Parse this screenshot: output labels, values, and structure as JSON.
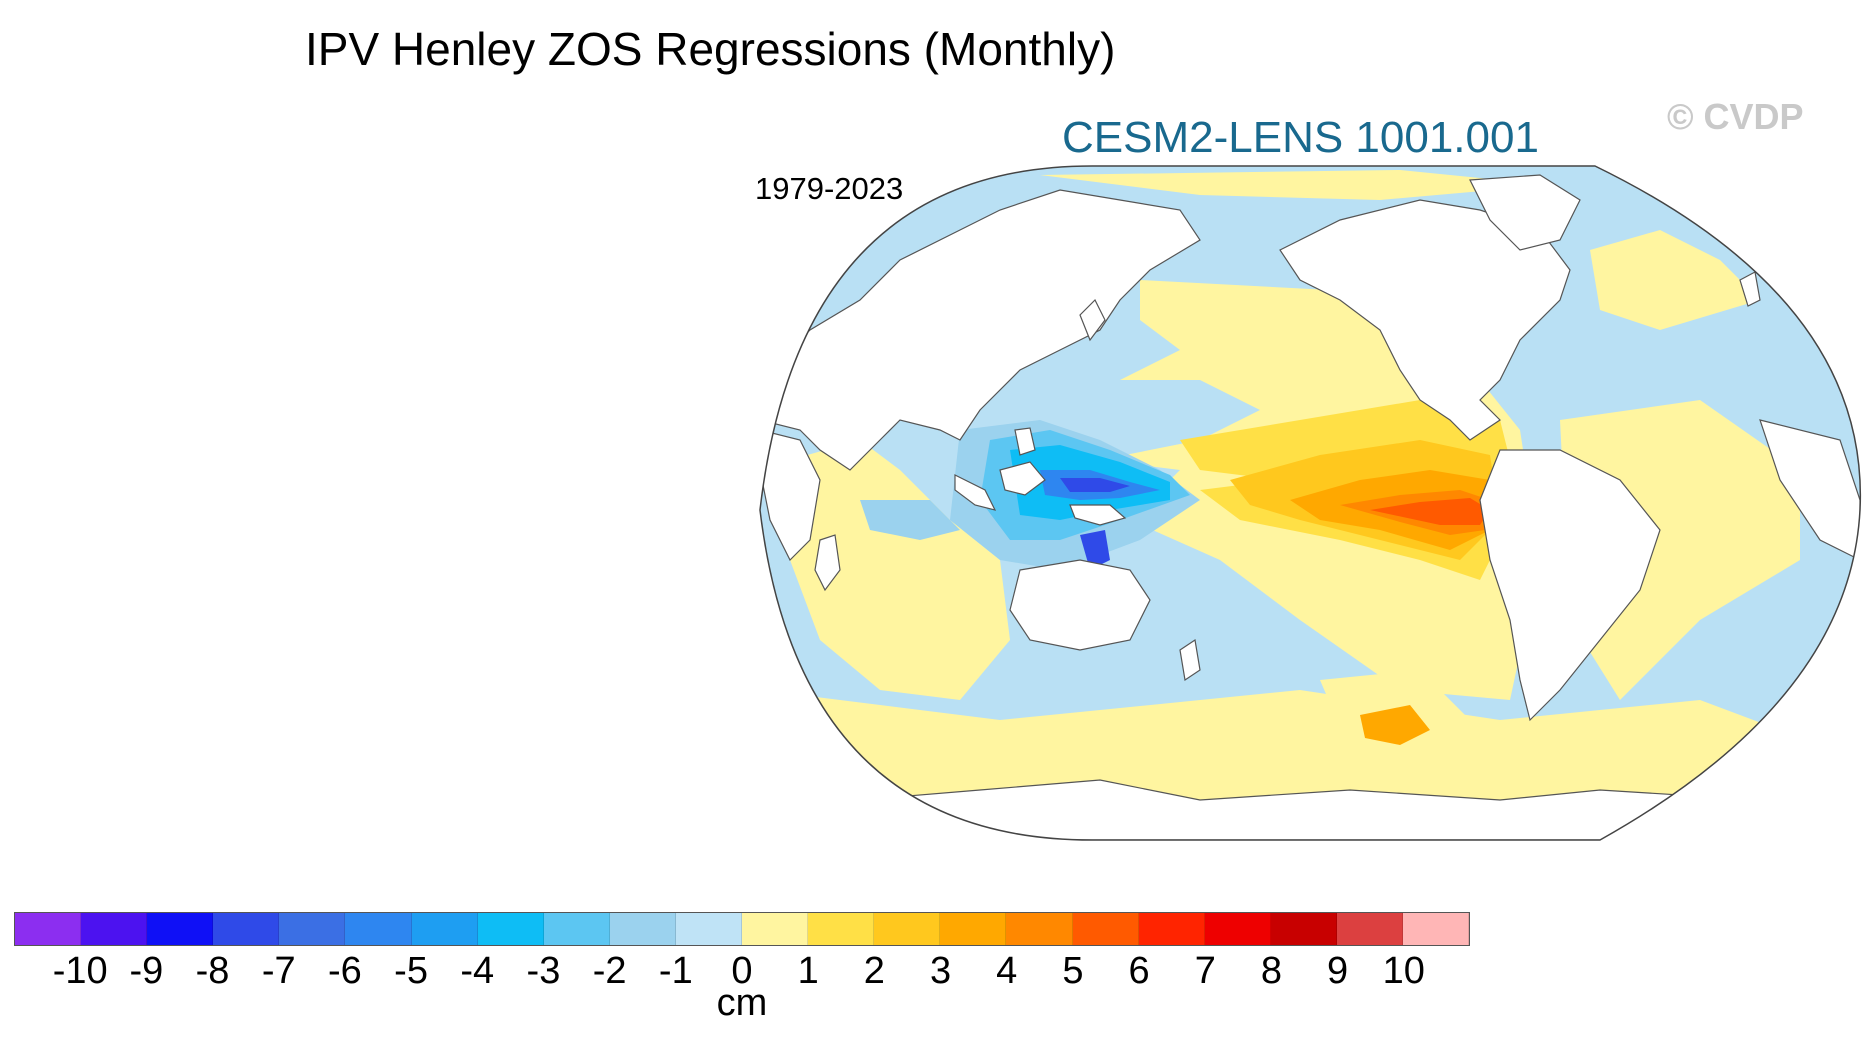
{
  "title": "IPV Henley ZOS Regressions (Monthly)",
  "subtitle": "CESM2-LENS 1001.001",
  "watermark": "© CVDP",
  "period": "1979-2023",
  "map": {
    "projection": "Robinson (Pacific-centered)",
    "variable": "ZOS regression onto IPV Henley index",
    "colors": {
      "ocean_background": "#b9e0f4",
      "land": "#ffffff",
      "coast": "#555555",
      "positive_weak": "#fff5a0"
    }
  },
  "colorbar": {
    "units": "cm",
    "tick_labels": [
      "-10",
      "-9",
      "-8",
      "-7",
      "-6",
      "-5",
      "-4",
      "-3",
      "-2",
      "-1",
      "0",
      "1",
      "2",
      "3",
      "4",
      "5",
      "6",
      "7",
      "8",
      "9",
      "10"
    ],
    "colors": [
      "#8c2ef0",
      "#4c12f0",
      "#0f10f6",
      "#2f4ae8",
      "#3b6fe4",
      "#2e86f0",
      "#1e9ef2",
      "#0ebdf5",
      "#5cc6f2",
      "#9bd2ee",
      "#bfe3f6",
      "#fff5a0",
      "#ffe046",
      "#ffc81e",
      "#ffa800",
      "#ff8800",
      "#ff5a00",
      "#ff2400",
      "#ee0000",
      "#c80000",
      "#dc4040",
      "#ffb6b6"
    ]
  }
}
